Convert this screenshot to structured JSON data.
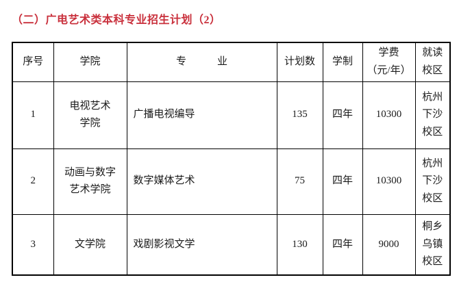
{
  "page": {
    "title": "（二）广电艺术类本科专业招生计划（2）",
    "title_color": "#c9303c",
    "border_color": "#000000",
    "text_color": "#1a1a1a",
    "background_color": "#ffffff"
  },
  "table": {
    "headers": {
      "index": "序号",
      "college": "学院",
      "major": "专　　　业",
      "plan": "计划数",
      "duration": "学制",
      "tuition": "学费\n（元/年）",
      "campus": "就读\n校区"
    },
    "rows": [
      {
        "index": "1",
        "college": "电视艺术\n学院",
        "major": "广播电视编导",
        "plan": "135",
        "duration": "四年",
        "tuition": "10300",
        "campus": "杭州\n下沙\n校区"
      },
      {
        "index": "2",
        "college": "动画与数字\n艺术学院",
        "major": "数字媒体艺术",
        "plan": "75",
        "duration": "四年",
        "tuition": "10300",
        "campus": "杭州\n下沙\n校区"
      },
      {
        "index": "3",
        "college": "文学院",
        "major": "戏剧影视文学",
        "plan": "130",
        "duration": "四年",
        "tuition": "9000",
        "campus": "桐乡\n乌镇\n校区"
      }
    ]
  }
}
